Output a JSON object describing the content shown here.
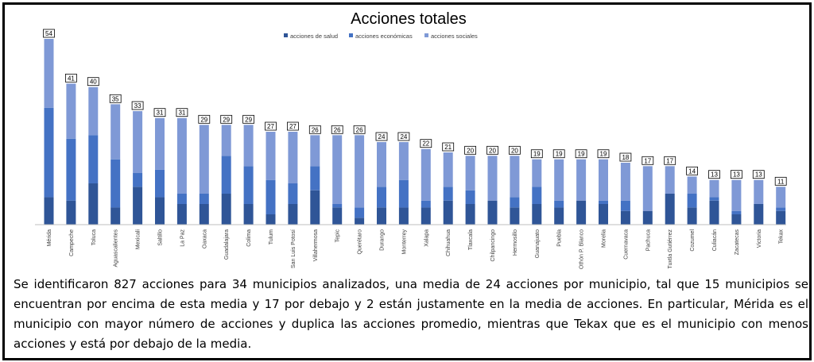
{
  "chart_data": {
    "type": "bar",
    "stacked": true,
    "title": "Acciones totales",
    "xlabel": "",
    "ylabel": "",
    "ylim": [
      0,
      54
    ],
    "grid": false,
    "legend_position": "top",
    "categories": [
      "Mérida",
      "Campeche",
      "Toluca",
      "Aguascalientes",
      "Mexicali",
      "Saltillo",
      "La Paz",
      "Oaxaca",
      "Guadalajara",
      "Colima",
      "Tulum",
      "San Luis Potosí",
      "Villahermosa",
      "Tepic",
      "Querétaro",
      "Durango",
      "Monterrey",
      "Xalapa",
      "Chihuahua",
      "Tlaxcala",
      "Chilpancingo",
      "Hermosillo",
      "Guanajuato",
      "Puebla",
      "Othón P. Blanco",
      "Morelia",
      "Cuernavaca",
      "Pachuca",
      "Tuxtla Gutiérrez",
      "Cozumel",
      "Culiacán",
      "Zacatecas",
      "Victoria",
      "Tekax"
    ],
    "series": [
      {
        "name": "acciones de salud",
        "color": "#2f5597",
        "values": [
          8,
          7,
          12,
          5,
          11,
          8,
          6,
          6,
          9,
          6,
          3,
          6,
          10,
          5,
          2,
          5,
          5,
          5,
          7,
          6,
          7,
          5,
          6,
          5,
          7,
          6,
          4,
          4,
          9,
          5,
          7,
          3,
          6,
          4
        ]
      },
      {
        "name": "acciones económicas",
        "color": "#4472c4",
        "values": [
          26,
          18,
          14,
          14,
          4,
          8,
          3,
          3,
          11,
          11,
          10,
          6,
          7,
          1,
          3,
          6,
          8,
          2,
          4,
          4,
          0,
          3,
          5,
          2,
          0,
          1,
          3,
          0,
          0,
          4,
          1,
          1,
          0,
          1
        ]
      },
      {
        "name": "acciones sociales",
        "color": "#7f99d6",
        "values": [
          20,
          16,
          14,
          16,
          18,
          15,
          22,
          20,
          9,
          12,
          14,
          15,
          9,
          20,
          21,
          13,
          11,
          15,
          10,
          10,
          13,
          12,
          8,
          12,
          12,
          12,
          11,
          13,
          8,
          5,
          5,
          9,
          7,
          6
        ]
      }
    ],
    "totals": [
      54,
      41,
      40,
      35,
      33,
      31,
      31,
      29,
      29,
      29,
      27,
      27,
      26,
      26,
      26,
      24,
      24,
      22,
      21,
      20,
      20,
      20,
      19,
      19,
      19,
      19,
      18,
      17,
      17,
      14,
      13,
      13,
      13,
      11
    ]
  },
  "paragraph": "Se identificaron 827 acciones para 34 municipios analizados, una media de 24 acciones por municipio, tal que 15 municipios se encuentran por encima de esta media y 17 por debajo y 2 están justamente en la media de acciones. En particular, Mérida es el municipio con mayor número de acciones y duplica las acciones promedio, mientras que Tekax que es el municipio con menos acciones y está por debajo de la media."
}
